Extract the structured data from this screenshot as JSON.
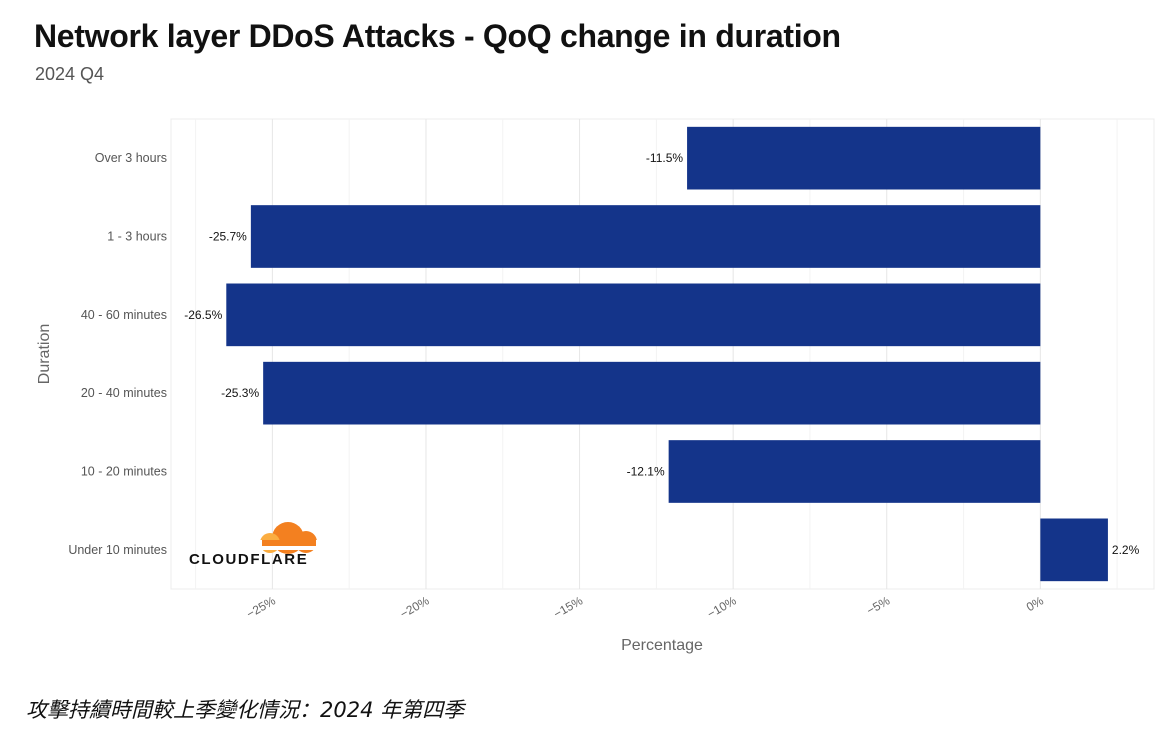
{
  "page": {
    "title": "Network layer DDoS Attacks - QoQ change in duration",
    "subtitle": "2024 Q4",
    "caption": "攻擊持續時間較上季變化情況：2024 年第四季",
    "logo_text": "CLOUDFLARE"
  },
  "chart_data": {
    "type": "bar",
    "orientation": "horizontal",
    "categories": [
      "Over 3 hours",
      "1 - 3 hours",
      "40 - 60 minutes",
      "20 - 40 minutes",
      "10 - 20 minutes",
      "Under 10 minutes"
    ],
    "values": [
      -11.5,
      -25.7,
      -26.5,
      -25.3,
      -12.1,
      2.2
    ],
    "value_labels": [
      "-11.5%",
      "-25.7%",
      "-26.5%",
      "-25.3%",
      "-12.1%",
      "2.2%"
    ],
    "xlabel": "Percentage",
    "ylabel": "Duration",
    "xlim": [
      -28.3,
      3.7
    ],
    "x_ticks": [
      -25,
      -20,
      -15,
      -10,
      -5,
      0
    ],
    "x_tick_labels": [
      "−25%",
      "−20%",
      "−15%",
      "−10%",
      "−5%",
      "0%"
    ],
    "grid": true,
    "bar_color": "#14348a",
    "legend": "none"
  }
}
